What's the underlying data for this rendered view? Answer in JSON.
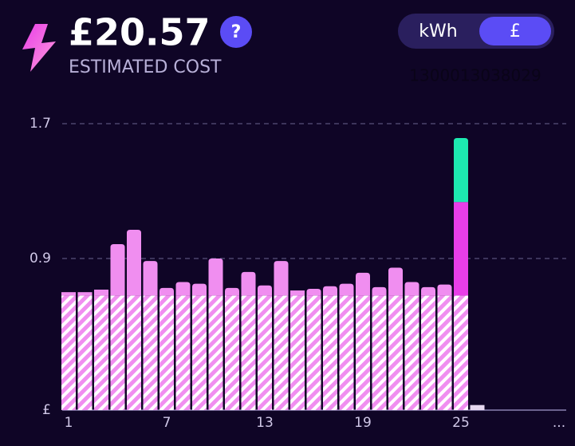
{
  "header": {
    "amount": "£20.57",
    "help": "?",
    "caption": "ESTIMATED COST",
    "meter_id": "1300013038029"
  },
  "toggle": {
    "options": [
      "kWh",
      "£"
    ],
    "selected": 1
  },
  "chart_data": {
    "type": "stacked-bar",
    "categories": [
      "1",
      null,
      null,
      null,
      null,
      null,
      "7",
      null,
      null,
      null,
      null,
      null,
      "13",
      null,
      null,
      null,
      null,
      null,
      "19",
      null,
      null,
      null,
      null,
      null,
      "25",
      null,
      null,
      null,
      null,
      null,
      "..."
    ],
    "ylim": [
      0,
      1.7
    ],
    "yticks": [
      {
        "value": 0,
        "label": "£"
      },
      0.9,
      1.7
    ],
    "grid": true,
    "series": [
      {
        "color": "#f08ef0",
        "pattern": "hatched",
        "values": [
          0.68,
          0.68,
          0.68,
          0.68,
          0.68,
          0.68,
          0.68,
          0.68,
          0.68,
          0.68,
          0.68,
          0.68,
          0.68,
          0.68,
          0.68,
          0.68,
          0.68,
          0.68,
          0.68,
          0.68,
          0.68,
          0.68,
          0.68,
          0.68,
          0.68,
          null,
          null,
          null,
          null,
          null,
          null
        ]
      },
      {
        "color": "#f08ef0",
        "values": [
          0.02,
          0.02,
          0.035,
          0.305,
          0.39,
          0.205,
          0.045,
          0.08,
          0.07,
          0.22,
          0.045,
          0.14,
          0.06,
          0.205,
          0.03,
          0.04,
          0.055,
          0.07,
          0.135,
          0.05,
          0.165,
          0.08,
          0.05,
          0.065,
          null,
          null,
          null,
          null,
          null,
          null,
          null
        ]
      },
      {
        "color": "#e83ee8",
        "values": [
          null,
          null,
          null,
          null,
          null,
          null,
          null,
          null,
          null,
          null,
          null,
          null,
          null,
          null,
          null,
          null,
          null,
          null,
          null,
          null,
          null,
          null,
          null,
          null,
          0.555,
          null,
          null,
          null,
          null,
          null,
          null
        ]
      },
      {
        "color": "#1de9b0",
        "values": [
          null,
          null,
          null,
          null,
          null,
          null,
          null,
          null,
          null,
          null,
          null,
          null,
          null,
          null,
          null,
          null,
          null,
          null,
          null,
          null,
          null,
          null,
          null,
          null,
          0.38,
          null,
          null,
          null,
          null,
          null,
          null
        ]
      },
      {
        "color": "#e6d8f0",
        "values": [
          null,
          null,
          null,
          null,
          null,
          null,
          null,
          null,
          null,
          null,
          null,
          null,
          null,
          null,
          null,
          null,
          null,
          null,
          null,
          null,
          null,
          null,
          null,
          null,
          null,
          0.03,
          null,
          null,
          null,
          null,
          null
        ]
      }
    ]
  }
}
